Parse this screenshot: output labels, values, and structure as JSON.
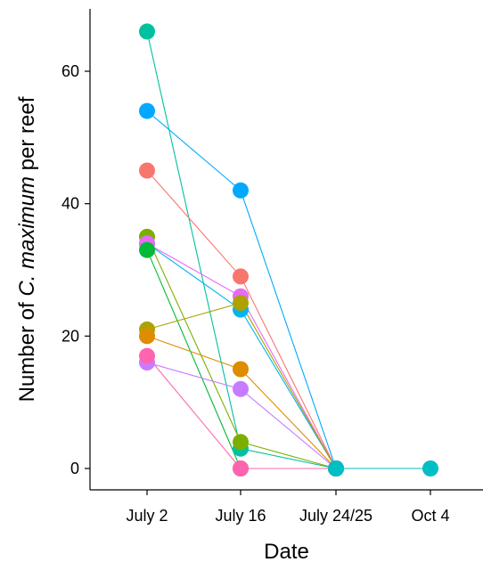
{
  "chart_data": {
    "type": "line",
    "title": "",
    "xlabel": "Date",
    "ylabel": {
      "prefix": "Number of ",
      "species": "C. maximum",
      "suffix": " per reef"
    },
    "categories": [
      "July 2",
      "July 16",
      "July 24/25",
      "Oct 4"
    ],
    "yticks": [
      0,
      20,
      40,
      60
    ],
    "ylim": [
      -3,
      69
    ],
    "grid": false,
    "legend": "none",
    "series": [
      {
        "color": "#00C19F",
        "values": [
          66,
          3,
          0,
          null
        ]
      },
      {
        "color": "#00A9FF",
        "values": [
          54,
          42,
          0,
          null
        ]
      },
      {
        "color": "#F8766D",
        "values": [
          45,
          29,
          0,
          null
        ]
      },
      {
        "color": "#7CAE00",
        "values": [
          35,
          4,
          0,
          null
        ]
      },
      {
        "color": "#00B4F0",
        "values": [
          34,
          24,
          0,
          null
        ]
      },
      {
        "color": "#E76BF3",
        "values": [
          34,
          26,
          0,
          null
        ]
      },
      {
        "color": "#00BA38",
        "values": [
          33,
          0,
          0,
          null
        ]
      },
      {
        "color": "#AEA200",
        "values": [
          21,
          25,
          0,
          null
        ]
      },
      {
        "color": "#DE8C00",
        "values": [
          20,
          15,
          0,
          null
        ]
      },
      {
        "color": "#C77CFF",
        "values": [
          16,
          12,
          0,
          null
        ]
      },
      {
        "color": "#FF64B0",
        "values": [
          17,
          0,
          0,
          null
        ]
      },
      {
        "color": "#00BFC4",
        "values": [
          null,
          null,
          0,
          0
        ]
      }
    ]
  }
}
